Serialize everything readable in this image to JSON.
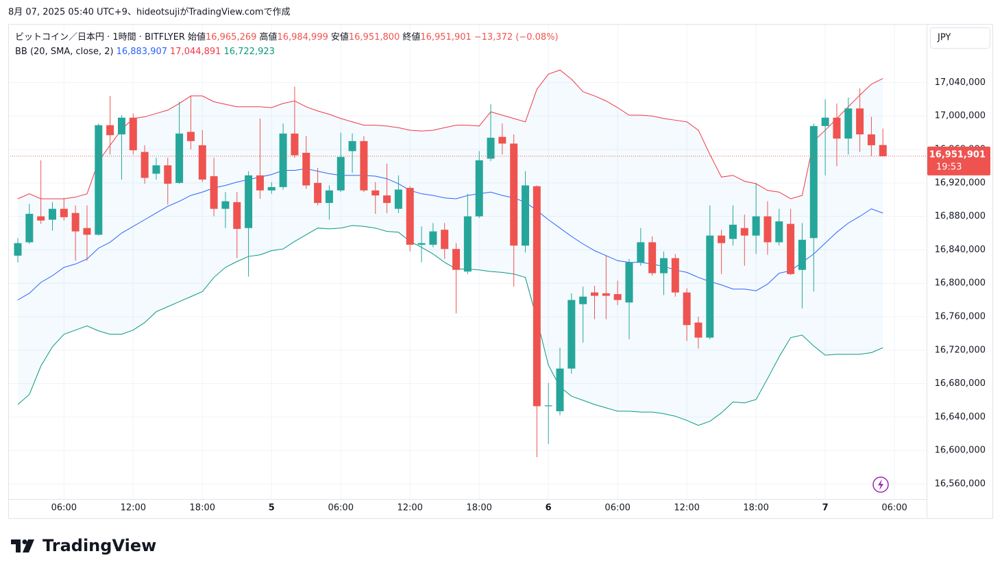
{
  "header": {
    "text": "8月 07, 2025 05:40 UTC+9、hideotsujiがTradingView.comで作成"
  },
  "footer": {
    "brand": "TradingView"
  },
  "chart_data": {
    "type": "candlestick",
    "title": "ビットコイン／日本円 · 1時間 · BITFLYER",
    "ohlc_legend": {
      "labels": [
        "始値",
        "高値",
        "安値",
        "終値"
      ],
      "value_labels": [
        "16,965,269",
        "16,984,999",
        "16,951,800",
        "16,951,901"
      ],
      "change": "−13,372 (−0.08%)"
    },
    "currency": "JPY",
    "countdown": "19:53",
    "categories": [
      null,
      null,
      null,
      null,
      "06:00",
      null,
      null,
      null,
      null,
      null,
      "12:00",
      null,
      null,
      null,
      null,
      null,
      "18:00",
      null,
      null,
      null,
      null,
      null,
      "5",
      null,
      null,
      null,
      null,
      null,
      "06:00",
      null,
      null,
      null,
      null,
      null,
      "12:00",
      null,
      null,
      null,
      null,
      null,
      "18:00",
      null,
      null,
      null,
      null,
      null,
      "6",
      null,
      null,
      null,
      null,
      null,
      "06:00",
      null,
      null,
      null,
      null,
      null,
      "12:00",
      null,
      null,
      null,
      null,
      null,
      "18:00",
      null,
      null,
      null,
      null,
      null,
      "7",
      null,
      null,
      null,
      null,
      null,
      "06:00"
    ],
    "open": [
      16833000,
      16849000,
      16880000,
      16876000,
      16889000,
      16884000,
      16866000,
      16858000,
      16989000,
      16978000,
      16998000,
      16957000,
      16931000,
      16941000,
      16920000,
      16981000,
      16965000,
      16928000,
      16889000,
      16897000,
      16866000,
      16929000,
      16911000,
      16915000,
      16979000,
      16956000,
      16920000,
      16896000,
      16911000,
      16958000,
      16970000,
      16911000,
      16905000,
      16889000,
      16914000,
      16846000,
      16846000,
      16864000,
      16841000,
      16814000,
      16880000,
      16949000,
      16975000,
      16967000,
      16845000,
      16916000,
      16653000,
      16647000,
      16698000,
      16775000,
      16789000,
      16788000,
      16787000,
      16777000,
      16825000,
      16849000,
      16812000,
      16830000,
      16789000,
      16753000,
      16735000,
      16857000,
      16853000,
      16866000,
      16857000,
      16880000,
      16849000,
      16871000,
      16816000,
      16854000,
      16988000,
      16998000,
      16973000,
      17009000,
      16978000,
      16965269,
      null
    ],
    "high": [
      16854000,
      16895000,
      16947000,
      16897000,
      16902000,
      16893000,
      16893000,
      16991000,
      17024000,
      17001000,
      17003000,
      16965000,
      16950000,
      16950000,
      17017000,
      17024000,
      16983000,
      16950000,
      16909000,
      16909000,
      16934000,
      16997000,
      16921000,
      16991000,
      17035000,
      16976000,
      16938000,
      16917000,
      16980000,
      16979000,
      16976000,
      16921000,
      16943000,
      16929000,
      16916000,
      16868000,
      16872000,
      16872000,
      16848000,
      16907000,
      16958000,
      17014000,
      16991000,
      16978000,
      16934000,
      16917000,
      16681000,
      16723000,
      16788000,
      16796000,
      16797000,
      16833000,
      16803000,
      16829000,
      16866000,
      16856000,
      16838000,
      16835000,
      16794000,
      16760000,
      16893000,
      16864000,
      16893000,
      16882000,
      16920000,
      16898000,
      16889000,
      16889000,
      16872000,
      16991000,
      17020000,
      17015000,
      17022000,
      17033000,
      16999000,
      16984999,
      null
    ],
    "low": [
      16825000,
      16847000,
      16871000,
      16863000,
      16875000,
      16827000,
      16827000,
      16857000,
      16954000,
      16924000,
      16954000,
      16919000,
      16924000,
      16894000,
      16919000,
      16960000,
      16921000,
      16880000,
      16866000,
      16830000,
      16808000,
      16901000,
      16907000,
      16912000,
      16950000,
      16913000,
      16893000,
      16876000,
      16909000,
      16932000,
      16909000,
      16883000,
      16884000,
      16884000,
      16838000,
      16825000,
      16843000,
      16829000,
      16764000,
      16811000,
      16878000,
      16946000,
      16954000,
      16796000,
      16837000,
      16592000,
      16608000,
      16642000,
      16692000,
      16729000,
      16757000,
      16757000,
      16774000,
      16733000,
      16821000,
      16809000,
      16786000,
      16784000,
      16731000,
      16722000,
      16733000,
      16811000,
      16845000,
      16821000,
      16835000,
      16834000,
      16845000,
      16810000,
      16770000,
      16790000,
      16929000,
      16940000,
      16954000,
      16957000,
      16952000,
      16951800,
      null
    ],
    "close": [
      16848000,
      16883000,
      16875000,
      16889000,
      16879000,
      16862000,
      16858000,
      16989000,
      16977000,
      16998000,
      16959000,
      16926000,
      16941000,
      16919000,
      16979000,
      16970000,
      16924000,
      16889000,
      16898000,
      16865000,
      16929000,
      16911000,
      16915000,
      16979000,
      16953000,
      16917000,
      16896000,
      16911000,
      16951000,
      16970000,
      16911000,
      16905000,
      16896000,
      16912000,
      16846000,
      16848000,
      16862000,
      16841000,
      16816000,
      16880000,
      16947000,
      16974000,
      16967000,
      16845000,
      16917000,
      16653000,
      16654000,
      16698000,
      16780000,
      16784000,
      16785000,
      16785000,
      16780000,
      16825000,
      16849000,
      16812000,
      16830000,
      16789000,
      16750000,
      16735000,
      16857000,
      16848000,
      16870000,
      16857000,
      16880000,
      16849000,
      16874000,
      16811000,
      16852000,
      16988000,
      16998000,
      16973000,
      17009000,
      16978000,
      16965000,
      16951901,
      null
    ],
    "up_color": "#26a69a",
    "down_color": "#ef5350",
    "bands": {
      "label": "BB (20, SMA, close, 2)",
      "fill": "#2196f3",
      "series": [
        {
          "color": "#2962ff",
          "value_label": "16,883,907",
          "values": [
            16780000,
            16788000,
            16801000,
            16809000,
            16819000,
            16823000,
            16829000,
            16842000,
            16849000,
            16860000,
            16868000,
            16876000,
            16884000,
            16892000,
            16898000,
            16905000,
            16909000,
            16914000,
            16917000,
            16921000,
            16924000,
            16927000,
            16930000,
            16935000,
            16935000,
            16937000,
            16934000,
            16931000,
            16929000,
            16929000,
            16929000,
            16928000,
            16925000,
            16919000,
            16911000,
            16907000,
            16905000,
            16902000,
            16901000,
            16905000,
            16907000,
            16909000,
            16905000,
            16902000,
            16897000,
            16887000,
            16876000,
            16866000,
            16856000,
            16847000,
            16839000,
            16833000,
            16827000,
            16825000,
            16825000,
            16823000,
            16820000,
            16816000,
            16813000,
            16807000,
            16802000,
            16798000,
            16793000,
            16793000,
            16791000,
            16799000,
            16812000,
            16815000,
            16825000,
            16835000,
            16848000,
            16861000,
            16872000,
            16880000,
            16889000,
            16883907,
            null
          ]
        },
        {
          "color": "#f23645",
          "value_label": "17,044,891",
          "values": [
            16901000,
            16907000,
            16901000,
            16901000,
            16901000,
            16903000,
            16907000,
            16946000,
            16965000,
            16984000,
            16997000,
            16999000,
            17003000,
            17007000,
            17015000,
            17024000,
            17024000,
            17017000,
            17014000,
            17011000,
            17011000,
            17011000,
            17010000,
            17015000,
            17018000,
            17011000,
            17006000,
            17002000,
            16997000,
            16993000,
            16989000,
            16989000,
            16988000,
            16986000,
            16983000,
            16982000,
            16983000,
            16986000,
            16989000,
            16989000,
            16988000,
            17005000,
            17001000,
            16997000,
            16993000,
            17032000,
            17050000,
            17055000,
            17044000,
            17029000,
            17024000,
            17018000,
            17010000,
            17001000,
            17001000,
            17000000,
            16997000,
            16995000,
            16993000,
            16983000,
            16954000,
            16927000,
            16929000,
            16922000,
            16919000,
            16911000,
            16909000,
            16901000,
            16905000,
            16970000,
            16983000,
            16997000,
            17011000,
            17025000,
            17038000,
            17044891,
            null
          ]
        },
        {
          "color": "#089981",
          "value_label": "16,722,923",
          "values": [
            16655000,
            16667000,
            16701000,
            16724000,
            16739000,
            16744000,
            16749000,
            16743000,
            16739000,
            16739000,
            16744000,
            16753000,
            16766000,
            16772000,
            16778000,
            16784000,
            16790000,
            16807000,
            16819000,
            16826000,
            16832000,
            16834000,
            16839000,
            16841000,
            16850000,
            16858000,
            16866000,
            16865000,
            16866000,
            16869000,
            16868000,
            16866000,
            16862000,
            16861000,
            16850000,
            16843000,
            16835000,
            16825000,
            16817000,
            16817000,
            16816000,
            16814000,
            16813000,
            16811000,
            16807000,
            16757000,
            16702000,
            16676000,
            16665000,
            16660000,
            16655000,
            16651000,
            16647000,
            16647000,
            16646000,
            16646000,
            16644000,
            16641000,
            16636000,
            16630000,
            16635000,
            16645000,
            16658000,
            16657000,
            16661000,
            16686000,
            16712000,
            16735000,
            16738000,
            16725000,
            16714000,
            16715000,
            16715000,
            16715000,
            16717000,
            16722923,
            null
          ]
        }
      ]
    },
    "ylim": [
      16542000,
      17110000
    ],
    "yticks": [
      {
        "value": 16560000,
        "label": "16,560,000"
      },
      {
        "value": 16600000,
        "label": "16,600,000"
      },
      {
        "value": 16640000,
        "label": "16,640,000"
      },
      {
        "value": 16680000,
        "label": "16,680,000"
      },
      {
        "value": 16720000,
        "label": "16,720,000"
      },
      {
        "value": 16760000,
        "label": "16,760,000"
      },
      {
        "value": 16800000,
        "label": "16,800,000"
      },
      {
        "value": 16840000,
        "label": "16,840,000"
      },
      {
        "value": 16880000,
        "label": "16,880,000"
      },
      {
        "value": 16920000,
        "label": "16,920,000"
      },
      {
        "value": 16960000,
        "label": "16,960,000"
      },
      {
        "value": 17000000,
        "label": "17,000,000"
      },
      {
        "value": 17040000,
        "label": "17,040,000"
      }
    ],
    "grid": true
  }
}
